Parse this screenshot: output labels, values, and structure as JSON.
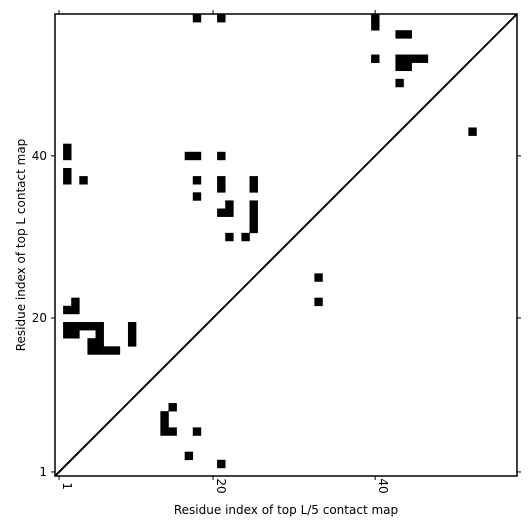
{
  "chart_data": {
    "type": "heatmap",
    "xlabel": "Residue index of top L/5 contact map",
    "ylabel": "Residue index of top L contact map",
    "xlim": [
      0.5,
      57.5
    ],
    "ylim": [
      0.5,
      57.5
    ],
    "x_ticks": [
      1,
      20,
      40
    ],
    "y_ticks": [
      1,
      20,
      40
    ],
    "diagonal": true,
    "cell_color": "#000000",
    "upper_triangle_contacts": [
      [
        2,
        40
      ],
      [
        2,
        41
      ],
      [
        2,
        37
      ],
      [
        2,
        38
      ],
      [
        4,
        37
      ],
      [
        17,
        40
      ],
      [
        18,
        40
      ],
      [
        18,
        37
      ],
      [
        18,
        35
      ],
      [
        18,
        57
      ],
      [
        21,
        57
      ],
      [
        21,
        40
      ],
      [
        21,
        36
      ],
      [
        21,
        37
      ],
      [
        21,
        33
      ],
      [
        22,
        33
      ],
      [
        22,
        34
      ],
      [
        22,
        30
      ],
      [
        24,
        30
      ],
      [
        25,
        31
      ],
      [
        25,
        32
      ],
      [
        25,
        33
      ],
      [
        25,
        34
      ],
      [
        25,
        36
      ],
      [
        25,
        37
      ],
      [
        40,
        56
      ],
      [
        40,
        57
      ],
      [
        40,
        52
      ],
      [
        43,
        55
      ],
      [
        44,
        55
      ],
      [
        43,
        51
      ],
      [
        44,
        51
      ],
      [
        43,
        52
      ],
      [
        44,
        52
      ],
      [
        45,
        52
      ],
      [
        46,
        52
      ],
      [
        43,
        49
      ],
      [
        52,
        43
      ]
    ],
    "lower_triangle_contacts": [
      [
        14,
        8
      ],
      [
        15,
        9
      ],
      [
        14,
        6
      ],
      [
        14,
        7
      ],
      [
        15,
        6
      ],
      [
        18,
        6
      ],
      [
        17,
        3
      ],
      [
        21,
        2
      ],
      [
        33,
        25
      ],
      [
        33,
        22
      ],
      [
        2,
        19
      ],
      [
        3,
        19
      ],
      [
        2,
        18
      ],
      [
        3,
        18
      ],
      [
        4,
        19
      ],
      [
        5,
        19
      ],
      [
        6,
        19
      ],
      [
        6,
        18
      ],
      [
        10,
        19
      ],
      [
        10,
        18
      ],
      [
        2,
        21
      ],
      [
        3,
        21
      ],
      [
        3,
        22
      ],
      [
        5,
        17
      ],
      [
        6,
        17
      ],
      [
        5,
        16
      ],
      [
        6,
        16
      ],
      [
        7,
        16
      ],
      [
        8,
        16
      ],
      [
        10,
        17
      ]
    ]
  }
}
